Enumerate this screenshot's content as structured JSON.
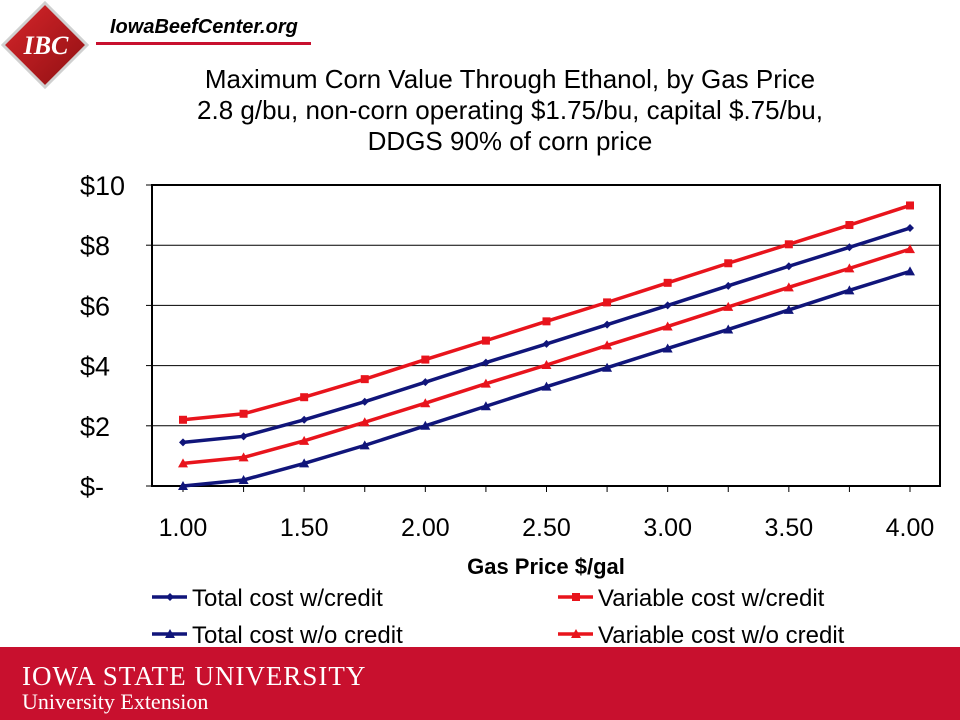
{
  "header": {
    "logo_text": "IBC",
    "site": "IowaBeefCenter.org"
  },
  "colors": {
    "red": "#e8141c",
    "navy": "#10157a",
    "footer": "#c8102e"
  },
  "chart_data": {
    "type": "line",
    "title": [
      "Maximum Corn Value Through Ethanol, by Gas Price",
      "2.8 g/bu, non-corn operating $1.75/bu, capital $.75/bu,",
      "DDGS 90% of corn price"
    ],
    "xlabel": "Gas Price $/gal",
    "ylabel": "",
    "x_ticks": [
      "1.00",
      "1.50",
      "2.00",
      "2.50",
      "3.00",
      "3.50",
      "4.00"
    ],
    "y_ticks": [
      "$-",
      "$2",
      "$4",
      "$6",
      "$8",
      "$10"
    ],
    "xlim": [
      1.0,
      4.0
    ],
    "ylim": [
      0,
      10
    ],
    "grid": "horizontal",
    "legend_position": "bottom",
    "x": [
      1.0,
      1.25,
      1.5,
      1.75,
      2.0,
      2.25,
      2.5,
      2.75,
      3.0,
      3.25,
      3.5,
      3.75,
      4.0
    ],
    "series": [
      {
        "name": "Total cost w/credit",
        "color": "#10157a",
        "marker": "diamond",
        "values": [
          1.45,
          1.65,
          2.2,
          2.8,
          3.45,
          4.1,
          4.72,
          5.36,
          6.0,
          6.65,
          7.3,
          7.93,
          8.57
        ]
      },
      {
        "name": "Variable cost w/credit",
        "color": "#e8141c",
        "marker": "square",
        "values": [
          2.2,
          2.4,
          2.95,
          3.55,
          4.2,
          4.83,
          5.47,
          6.1,
          6.75,
          7.4,
          8.03,
          8.67,
          9.32
        ]
      },
      {
        "name": "Total cost w/o credit",
        "color": "#10157a",
        "marker": "triangle",
        "values": [
          0.0,
          0.2,
          0.75,
          1.35,
          2.0,
          2.65,
          3.3,
          3.93,
          4.57,
          5.2,
          5.85,
          6.5,
          7.13
        ]
      },
      {
        "name": "Variable cost w/o credit",
        "color": "#e8141c",
        "marker": "triangle",
        "values": [
          0.75,
          0.95,
          1.5,
          2.12,
          2.75,
          3.4,
          4.02,
          4.67,
          5.3,
          5.95,
          6.6,
          7.23,
          7.87
        ]
      }
    ]
  },
  "footer": {
    "line1": "IOWA STATE UNIVERSITY",
    "line2": "University Extension"
  }
}
